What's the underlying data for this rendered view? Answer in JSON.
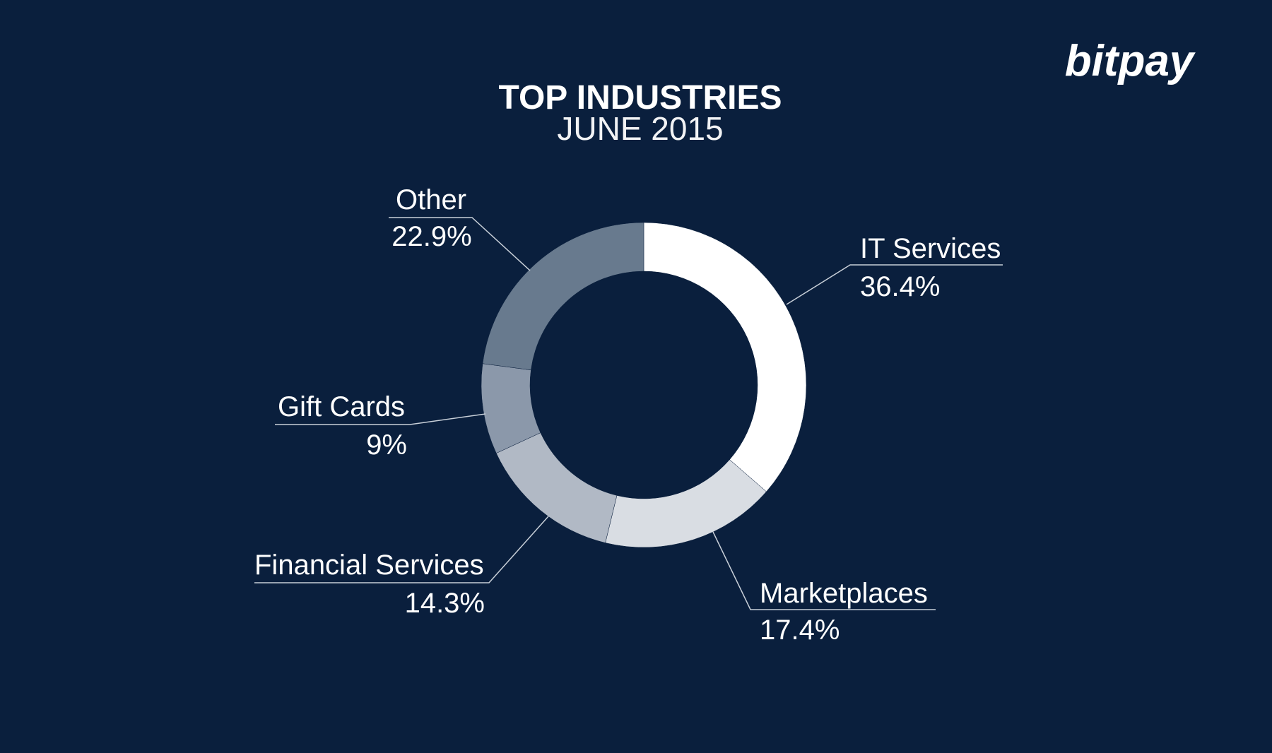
{
  "brand": {
    "logo_text": "bitpay"
  },
  "chart_data": {
    "type": "pie",
    "title": "TOP INDUSTRIES",
    "subtitle": "JUNE 2015",
    "slices": [
      {
        "label": "IT Services",
        "value": 36.4,
        "value_text": "36.4%",
        "color": "#ffffff"
      },
      {
        "label": "Marketplaces",
        "value": 17.4,
        "value_text": "17.4%",
        "color": "#d9dde3"
      },
      {
        "label": "Financial Services",
        "value": 14.3,
        "value_text": "14.3%",
        "color": "#b1b9c5"
      },
      {
        "label": "Gift Cards",
        "value": 9,
        "value_text": "9%",
        "color": "#8b98aa"
      },
      {
        "label": "Other",
        "value": 22.9,
        "value_text": "22.9%",
        "color": "#687a8e"
      }
    ]
  },
  "colors": {
    "background": "#0a1f3d",
    "text": "#ffffff",
    "leader_line": "#c8cfd8"
  }
}
